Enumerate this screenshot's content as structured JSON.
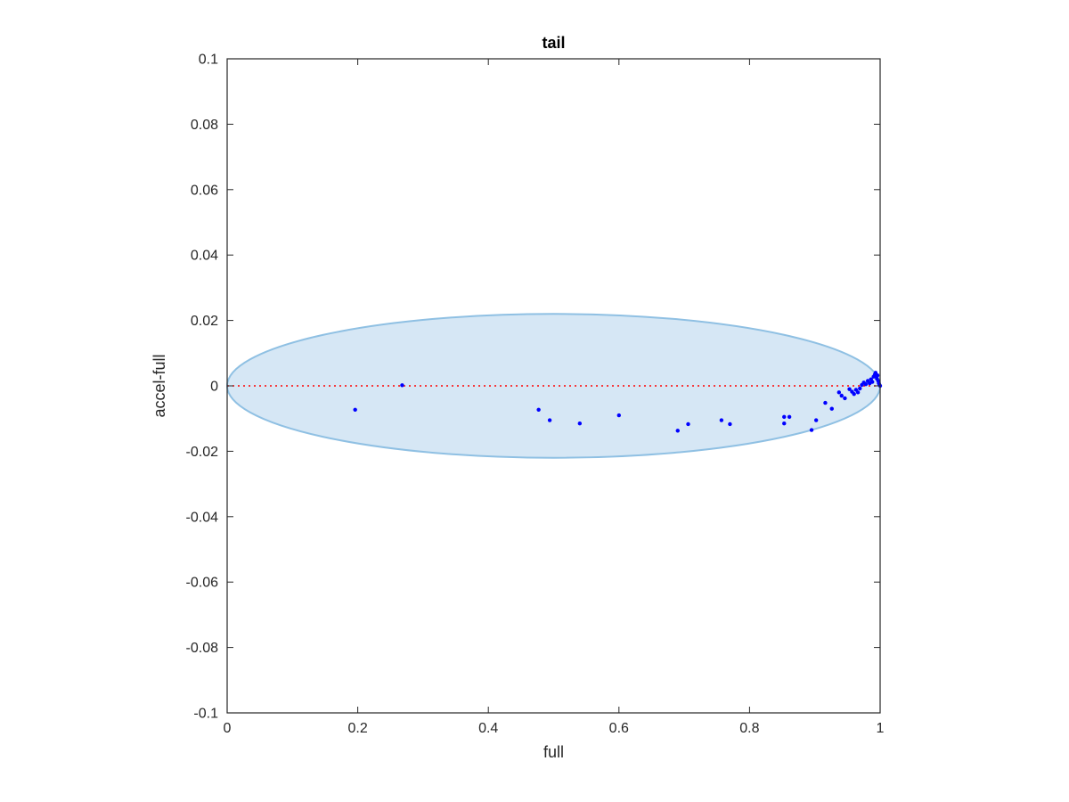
{
  "chart_data": {
    "type": "scatter",
    "title": "tail",
    "xlabel": "full",
    "ylabel": "accel-full",
    "xlim": [
      0,
      1
    ],
    "ylim": [
      -0.1,
      0.1
    ],
    "xticks": [
      0,
      0.2,
      0.4,
      0.6,
      0.8,
      1
    ],
    "xtick_labels": [
      "0",
      "0.2",
      "0.4",
      "0.6",
      "0.8",
      "1"
    ],
    "yticks": [
      -0.1,
      -0.08,
      -0.06,
      -0.04,
      -0.02,
      0,
      0.02,
      0.04,
      0.06,
      0.08,
      0.1
    ],
    "ytick_labels": [
      "-0.1",
      "-0.08",
      "-0.06",
      "-0.04",
      "-0.02",
      "0",
      "0.02",
      "0.04",
      "0.06",
      "0.08",
      "0.1"
    ],
    "grid": false,
    "colors": {
      "points": "#0000ff",
      "ellipse_fill": "#d6e7f5",
      "ellipse_stroke": "#8fc0e3",
      "reference_line": "#ff0000",
      "axes": "#262626"
    },
    "ellipse": {
      "cx": 0.5,
      "cy": 0,
      "rx": 0.5,
      "ry": 0.022
    },
    "reference_line": {
      "y": 0,
      "x": [
        0,
        1
      ],
      "style": "dotted"
    },
    "points": [
      {
        "x": 0.196,
        "y": -0.0073
      },
      {
        "x": 0.268,
        "y": 0.0002
      },
      {
        "x": 0.477,
        "y": -0.0073
      },
      {
        "x": 0.494,
        "y": -0.0105
      },
      {
        "x": 0.54,
        "y": -0.0115
      },
      {
        "x": 0.6,
        "y": -0.009
      },
      {
        "x": 0.69,
        "y": -0.0137
      },
      {
        "x": 0.706,
        "y": -0.0117
      },
      {
        "x": 0.757,
        "y": -0.0105
      },
      {
        "x": 0.77,
        "y": -0.0117
      },
      {
        "x": 0.853,
        "y": -0.0115
      },
      {
        "x": 0.853,
        "y": -0.0095
      },
      {
        "x": 0.861,
        "y": -0.0095
      },
      {
        "x": 0.895,
        "y": -0.0135
      },
      {
        "x": 0.902,
        "y": -0.0105
      },
      {
        "x": 0.916,
        "y": -0.0052
      },
      {
        "x": 0.926,
        "y": -0.007
      },
      {
        "x": 0.937,
        "y": -0.002
      },
      {
        "x": 0.941,
        "y": -0.003
      },
      {
        "x": 0.946,
        "y": -0.0038
      },
      {
        "x": 0.953,
        "y": -0.001
      },
      {
        "x": 0.957,
        "y": -0.0018
      },
      {
        "x": 0.96,
        "y": -0.0025
      },
      {
        "x": 0.963,
        "y": -0.0012
      },
      {
        "x": 0.966,
        "y": -0.002
      },
      {
        "x": 0.969,
        "y": -0.0008
      },
      {
        "x": 0.972,
        "y": 0.0003
      },
      {
        "x": 0.975,
        "y": 0.001
      },
      {
        "x": 0.978,
        "y": 0.0005
      },
      {
        "x": 0.981,
        "y": 0.0015
      },
      {
        "x": 0.984,
        "y": 0.0008
      },
      {
        "x": 0.986,
        "y": 0.002
      },
      {
        "x": 0.988,
        "y": 0.0012
      },
      {
        "x": 0.99,
        "y": 0.0028
      },
      {
        "x": 0.992,
        "y": 0.0035
      },
      {
        "x": 0.993,
        "y": 0.004
      },
      {
        "x": 0.994,
        "y": 0.003
      },
      {
        "x": 0.995,
        "y": 0.0022
      },
      {
        "x": 0.996,
        "y": 0.0032
      },
      {
        "x": 0.997,
        "y": 0.0015
      },
      {
        "x": 0.998,
        "y": 0.0008
      },
      {
        "x": 0.999,
        "y": 0.0003
      },
      {
        "x": 1.0,
        "y": 0.0
      }
    ]
  }
}
